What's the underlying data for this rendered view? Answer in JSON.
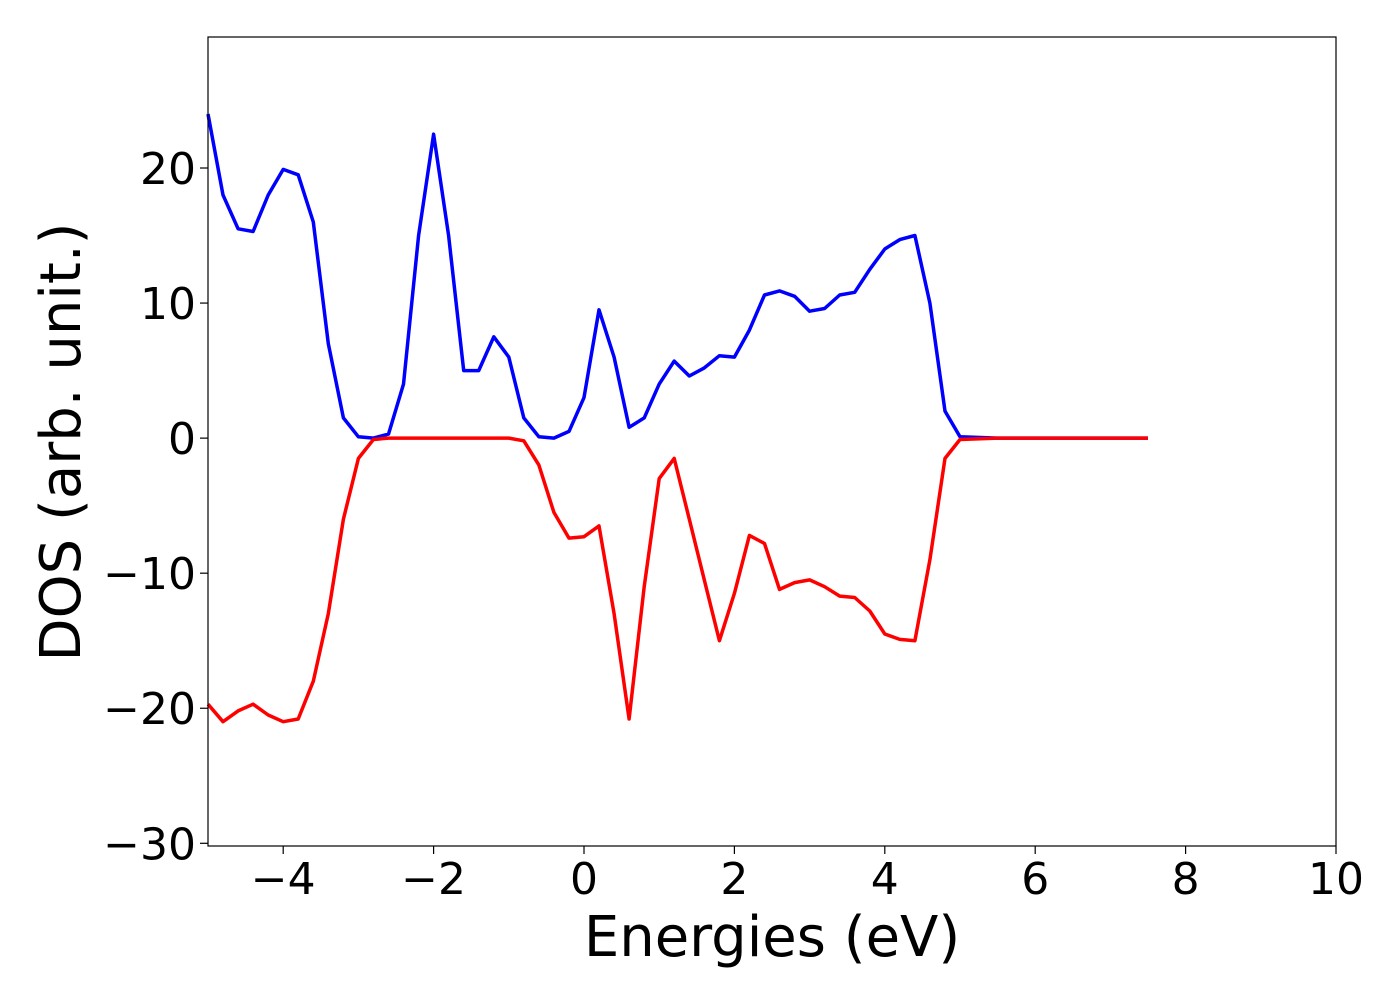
{
  "chart_data": {
    "type": "line",
    "xlabel": "Energies (eV)",
    "ylabel": "DOS (arb. unit.)",
    "x": [
      -5,
      -4.8,
      -4.6,
      -4.4,
      -4.2,
      -4,
      -3.8,
      -3.6,
      -3.4,
      -3.2,
      -3,
      -2.8,
      -2.6,
      -2.4,
      -2.2,
      -2,
      -1.8,
      -1.6,
      -1.4,
      -1.2,
      -1,
      -0.8,
      -0.6,
      -0.4,
      -0.2,
      0,
      0.2,
      0.4,
      0.6,
      0.8,
      1,
      1.2,
      1.4,
      1.6,
      1.8,
      2,
      2.2,
      2.4,
      2.6,
      2.8,
      3,
      3.2,
      3.4,
      3.6,
      3.8,
      4,
      4.2,
      4.4,
      4.6,
      4.8,
      5,
      5.5,
      6,
      6.5,
      7,
      7.5
    ],
    "series": [
      {
        "color": "#0000ff",
        "values": [
          24,
          18,
          15.5,
          15.3,
          18,
          19.9,
          19.5,
          16,
          7,
          1.5,
          0.1,
          0,
          0.3,
          4,
          15,
          22.5,
          15,
          5,
          5,
          7.5,
          6,
          1.5,
          0.1,
          0,
          0.5,
          3,
          9.5,
          6,
          0.8,
          1.5,
          4,
          5.7,
          4.6,
          5.2,
          6.1,
          6,
          8,
          10.6,
          10.9,
          10.5,
          9.4,
          9.6,
          10.6,
          10.8,
          12.5,
          14,
          14.7,
          15,
          10,
          2,
          0.1,
          0,
          0,
          0,
          0,
          0
        ]
      },
      {
        "color": "#ff0000",
        "values": [
          -19.7,
          -21,
          -20.2,
          -19.7,
          -20.5,
          -21,
          -20.8,
          -18,
          -13,
          -6,
          -1.5,
          -0.1,
          0,
          0,
          0,
          0,
          0,
          0,
          0,
          0,
          0,
          -0.2,
          -2,
          -5.5,
          -7.4,
          -7.3,
          -6.5,
          -13,
          -20.8,
          -11,
          -3,
          -1.5,
          -6,
          -10.5,
          -15,
          -11.5,
          -7.2,
          -7.8,
          -11.2,
          -10.7,
          -10.5,
          -11,
          -11.7,
          -11.8,
          -12.8,
          -14.5,
          -14.9,
          -15,
          -9,
          -1.5,
          -0.1,
          0,
          0,
          0,
          0,
          0
        ]
      }
    ],
    "xlim": [
      -5,
      10
    ],
    "xticks": [
      {
        "value": -4,
        "label": "−4"
      },
      {
        "value": -2,
        "label": "−2"
      },
      0,
      2,
      4,
      6,
      8,
      10
    ],
    "ylim": [
      -30.2,
      29.7
    ],
    "yticks": [
      {
        "value": -30,
        "label": "−30"
      },
      {
        "value": -20,
        "label": "−20"
      },
      {
        "value": -10,
        "label": "−10"
      },
      0,
      10,
      20
    ]
  }
}
